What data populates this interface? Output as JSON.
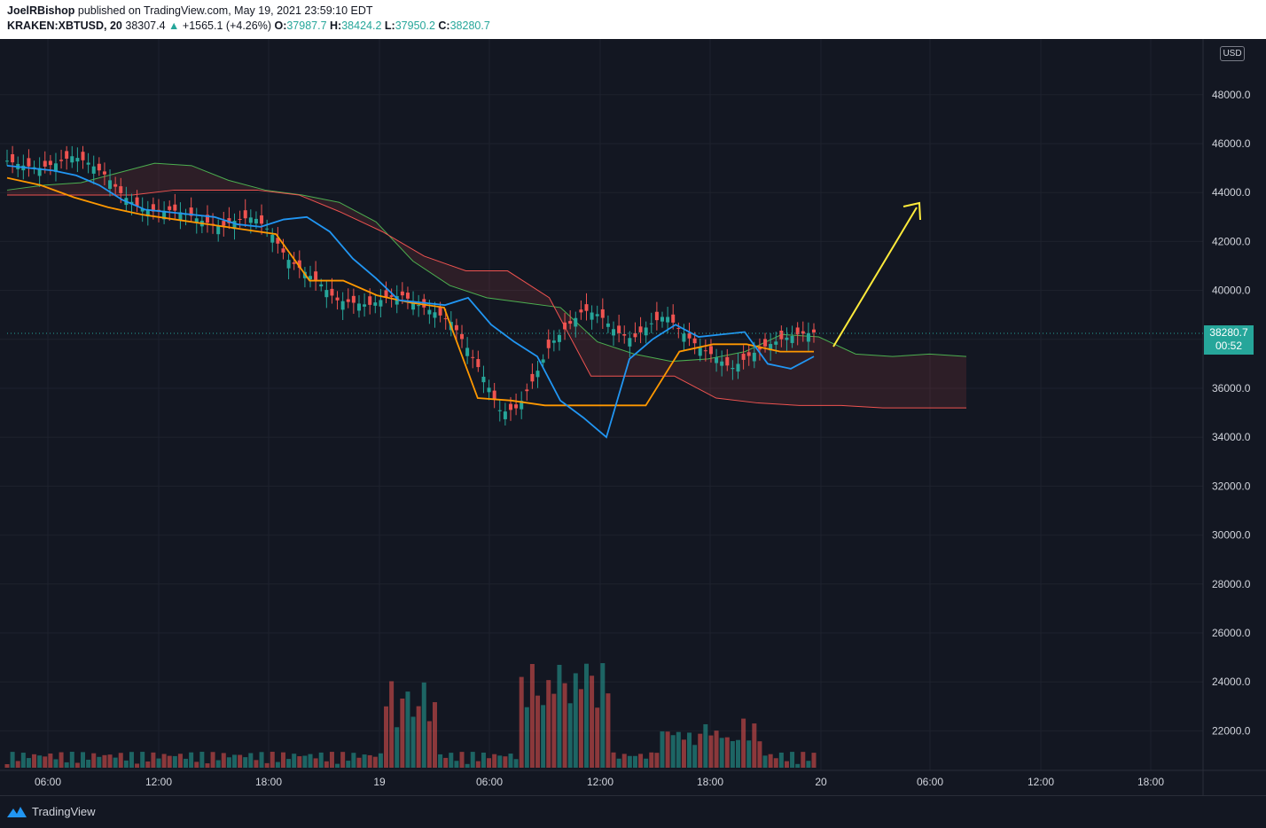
{
  "header": {
    "author": "JoelRBishop",
    "published_text": "published on TradingView.com, May 19, 2021 23:59:10 EDT",
    "symbol": "KRAKEN:XBTUSD, 20",
    "price": "38307.4",
    "change_arrow": "▲",
    "change": "+1565.1 (+4.26%)",
    "o_label": "O:",
    "o_value": "37987.7",
    "h_label": "H:",
    "h_value": "38424.2",
    "l_label": "L:",
    "l_value": "37950.2",
    "c_label": "C:",
    "c_value": "38280.7"
  },
  "currency_badge": "USD",
  "last_price": {
    "value": "38280.7",
    "countdown": "00:52"
  },
  "footer": {
    "brand": "TradingView",
    "logo_icon": "tradingview-logo-icon"
  },
  "colors": {
    "background": "#131722",
    "up": "#26a69a",
    "down": "#ef5350",
    "tenkan": "#2196f3",
    "kijun": "#ff9800",
    "cloud_up": "#4caf50",
    "cloud_down": "#ef5350",
    "arrow": "#ffeb3b"
  },
  "chart_data": {
    "type": "line",
    "description_series": "candlestick with volume and Ichimoku cloud",
    "y_axis": {
      "ylim": [
        20000,
        50000
      ],
      "ticks": [
        "48000.0",
        "46000.0",
        "44000.0",
        "42000.0",
        "40000.0",
        "38000.0",
        "36000.0",
        "34000.0",
        "32000.0",
        "30000.0",
        "28000.0",
        "26000.0",
        "24000.0",
        "22000.0"
      ]
    },
    "x_axis": {
      "ticks": [
        "06:00",
        "12:00",
        "18:00",
        "19",
        "06:00",
        "12:00",
        "18:00",
        "20",
        "06:00",
        "12:00",
        "18:00"
      ]
    },
    "close_series": [
      45300,
      45100,
      45000,
      45200,
      45500,
      45200,
      44700,
      43900,
      43400,
      43200,
      43300,
      43100,
      42800,
      42600,
      42900,
      43000,
      42400,
      41300,
      40800,
      40300,
      39600,
      39500,
      39400,
      39700,
      39800,
      39400,
      39100,
      38700,
      37600,
      36400,
      35000,
      35200,
      36400,
      37800,
      38500,
      39200,
      39000,
      38300,
      38000,
      38600,
      39000,
      38300,
      37700,
      37300,
      36800,
      37300,
      37700,
      38000,
      38200,
      38280.7
    ],
    "tenkan_series": [
      45100,
      45000,
      44900,
      44700,
      44300,
      43700,
      43300,
      43200,
      43100,
      43000,
      42700,
      42600,
      42900,
      43000,
      42400,
      41300,
      40500,
      39600,
      39500,
      39400,
      39700,
      38600,
      37900,
      37300,
      35500,
      34800,
      34000,
      37200,
      38000,
      38600,
      38100,
      38200,
      38300,
      37000,
      36800,
      37300
    ],
    "kijun_series": [
      44600,
      44300,
      43800,
      43400,
      43100,
      42900,
      42700,
      42500,
      42300,
      40400,
      40400,
      39800,
      39500,
      39300,
      35600,
      35500,
      35300,
      35300,
      35300,
      35300,
      37500,
      37800,
      37800,
      37500,
      37500
    ],
    "cloud_span_a": [
      44100,
      44300,
      44400,
      44800,
      45200,
      45100,
      44500,
      44100,
      43900,
      43600,
      42800,
      41200,
      40200,
      39700,
      39500,
      39300,
      37900,
      37400,
      37100,
      37200,
      37500,
      38200,
      38100,
      37400,
      37300,
      37400,
      37300
    ],
    "cloud_span_b": [
      43900,
      43900,
      43900,
      43900,
      44100,
      44100,
      44100,
      43900,
      43200,
      42400,
      41400,
      40800,
      40800,
      39700,
      36500,
      36500,
      36500,
      35600,
      35400,
      35300,
      35300,
      35200,
      35200,
      35200
    ],
    "volume_note": "Volume bars in lower pane (relative heights)",
    "legend": [],
    "annotations": [
      {
        "type": "arrow",
        "direction": "up-right",
        "color": "#ffeb3b"
      }
    ],
    "grid": true
  }
}
